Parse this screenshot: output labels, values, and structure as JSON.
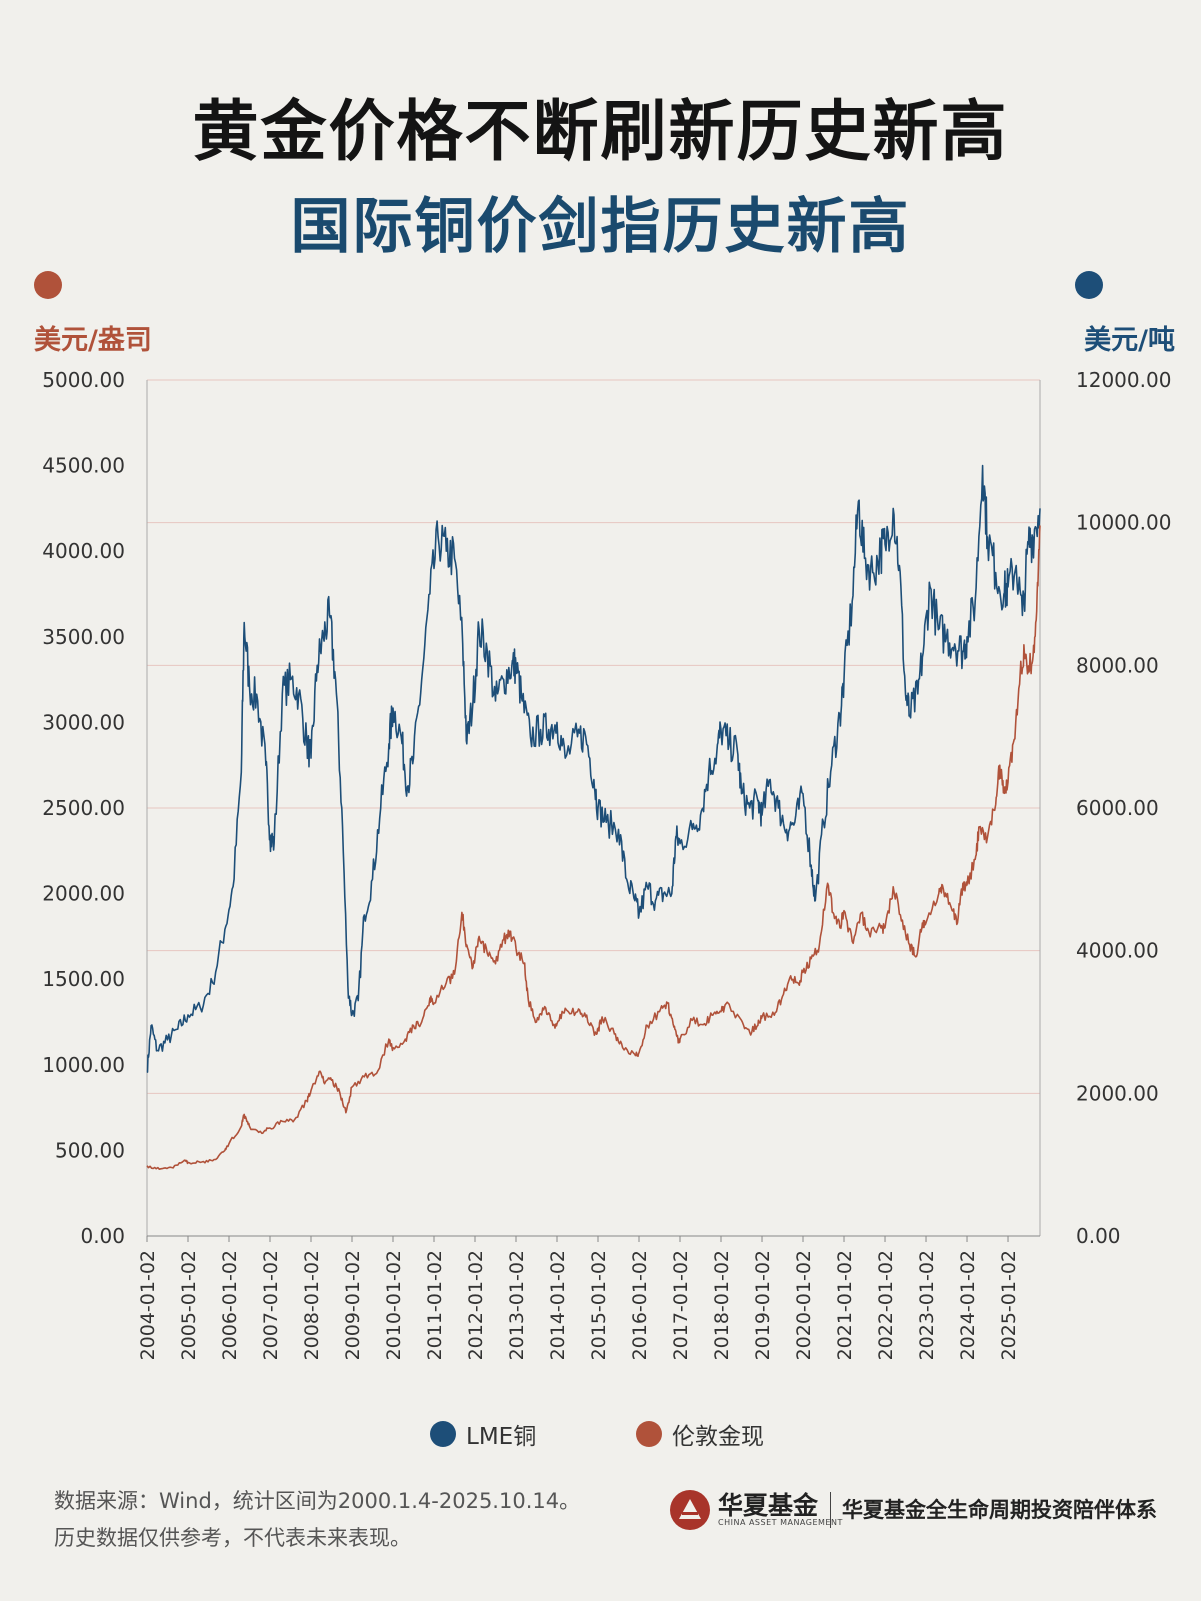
{
  "title": "黄金价格不断刷新历史新高",
  "subtitle": "国际铜价剑指历史新高",
  "colors": {
    "gold": "#b0523a",
    "copper": "#1d4e78",
    "title": "#141414",
    "subtitle": "#1a4a6e"
  },
  "left_axis_unit": "美元/盎司",
  "right_axis_unit": "美元/吨",
  "chart_data": {
    "type": "line",
    "title": "黄金价格不断刷新历史新高 / 国际铜价剑指历史新高",
    "x_tick_labels": [
      "2004-01-02",
      "2005-01-02",
      "2006-01-02",
      "2007-01-02",
      "2008-01-02",
      "2009-01-02",
      "2010-01-02",
      "2011-01-02",
      "2012-01-02",
      "2013-01-02",
      "2014-01-02",
      "2015-01-02",
      "2016-01-02",
      "2017-01-02",
      "2018-01-02",
      "2019-01-02",
      "2020-01-02",
      "2021-01-02",
      "2022-01-02",
      "2023-01-02",
      "2024-01-02",
      "2025-01-02"
    ],
    "y_left": {
      "label": "美元/盎司",
      "ylim": [
        0,
        5000
      ],
      "ticks": [
        "0.00",
        "500.00",
        "1000.00",
        "1500.00",
        "2000.00",
        "2500.00",
        "3000.00",
        "3500.00",
        "4000.00",
        "4500.00",
        "5000.00"
      ]
    },
    "y_right": {
      "label": "美元/吨",
      "ylim": [
        0,
        12000
      ],
      "ticks": [
        "0.00",
        "2000.00",
        "4000.00",
        "6000.00",
        "8000.00",
        "10000.00",
        "12000.00"
      ]
    },
    "series": [
      {
        "name": "LME铜",
        "axis": "right",
        "color": "#1d4e78",
        "points": [
          [
            2004.0,
            2300
          ],
          [
            2004.1,
            2950
          ],
          [
            2004.25,
            2600
          ],
          [
            2004.5,
            2750
          ],
          [
            2004.75,
            2900
          ],
          [
            2005.0,
            3100
          ],
          [
            2005.3,
            3200
          ],
          [
            2005.6,
            3550
          ],
          [
            2005.9,
            4300
          ],
          [
            2006.1,
            4900
          ],
          [
            2006.3,
            6500
          ],
          [
            2006.37,
            8600
          ],
          [
            2006.5,
            7700
          ],
          [
            2006.7,
            7500
          ],
          [
            2006.9,
            6600
          ],
          [
            2007.0,
            5600
          ],
          [
            2007.1,
            5500
          ],
          [
            2007.3,
            7600
          ],
          [
            2007.5,
            7800
          ],
          [
            2007.7,
            7600
          ],
          [
            2007.9,
            6900
          ],
          [
            2008.0,
            6700
          ],
          [
            2008.15,
            8000
          ],
          [
            2008.3,
            8400
          ],
          [
            2008.45,
            8700
          ],
          [
            2008.6,
            7800
          ],
          [
            2008.75,
            6000
          ],
          [
            2008.9,
            3500
          ],
          [
            2009.0,
            3100
          ],
          [
            2009.15,
            3300
          ],
          [
            2009.3,
            4500
          ],
          [
            2009.5,
            5000
          ],
          [
            2009.7,
            6000
          ],
          [
            2009.9,
            6900
          ],
          [
            2010.0,
            7400
          ],
          [
            2010.2,
            7000
          ],
          [
            2010.35,
            6300
          ],
          [
            2010.5,
            6700
          ],
          [
            2010.7,
            7800
          ],
          [
            2010.9,
            9000
          ],
          [
            2011.1,
            9800
          ],
          [
            2011.3,
            9600
          ],
          [
            2011.5,
            9500
          ],
          [
            2011.7,
            8300
          ],
          [
            2011.8,
            6900
          ],
          [
            2011.95,
            7500
          ],
          [
            2012.1,
            8500
          ],
          [
            2012.3,
            8200
          ],
          [
            2012.5,
            7500
          ],
          [
            2012.7,
            7800
          ],
          [
            2012.9,
            8000
          ],
          [
            2013.0,
            8000
          ],
          [
            2013.15,
            7500
          ],
          [
            2013.35,
            7000
          ],
          [
            2013.6,
            7100
          ],
          [
            2013.8,
            7100
          ],
          [
            2014.0,
            7200
          ],
          [
            2014.2,
            6700
          ],
          [
            2014.5,
            7000
          ],
          [
            2014.7,
            7000
          ],
          [
            2014.9,
            6400
          ],
          [
            2015.0,
            6000
          ],
          [
            2015.2,
            5800
          ],
          [
            2015.5,
            5700
          ],
          [
            2015.7,
            5000
          ],
          [
            2015.9,
            4700
          ],
          [
            2016.0,
            4500
          ],
          [
            2016.2,
            4900
          ],
          [
            2016.4,
            4700
          ],
          [
            2016.6,
            4800
          ],
          [
            2016.8,
            4800
          ],
          [
            2016.9,
            5600
          ],
          [
            2017.0,
            5500
          ],
          [
            2017.3,
            5700
          ],
          [
            2017.5,
            5900
          ],
          [
            2017.7,
            6500
          ],
          [
            2017.9,
            6800
          ],
          [
            2018.0,
            7100
          ],
          [
            2018.2,
            6900
          ],
          [
            2018.4,
            6800
          ],
          [
            2018.5,
            6200
          ],
          [
            2018.7,
            6000
          ],
          [
            2018.9,
            6100
          ],
          [
            2019.0,
            5900
          ],
          [
            2019.2,
            6400
          ],
          [
            2019.4,
            6000
          ],
          [
            2019.6,
            5700
          ],
          [
            2019.8,
            5800
          ],
          [
            2020.0,
            6200
          ],
          [
            2020.2,
            5200
          ],
          [
            2020.3,
            4700
          ],
          [
            2020.5,
            5800
          ],
          [
            2020.7,
            6600
          ],
          [
            2020.9,
            7300
          ],
          [
            2021.0,
            7800
          ],
          [
            2021.2,
            8900
          ],
          [
            2021.35,
            10300
          ],
          [
            2021.5,
            9500
          ],
          [
            2021.7,
            9300
          ],
          [
            2021.9,
            9600
          ],
          [
            2022.0,
            9700
          ],
          [
            2022.2,
            10200
          ],
          [
            2022.35,
            9400
          ],
          [
            2022.5,
            7600
          ],
          [
            2022.6,
            7300
          ],
          [
            2022.8,
            7600
          ],
          [
            2022.95,
            8300
          ],
          [
            2023.1,
            9100
          ],
          [
            2023.3,
            8500
          ],
          [
            2023.5,
            8400
          ],
          [
            2023.7,
            8300
          ],
          [
            2023.9,
            8200
          ],
          [
            2024.0,
            8400
          ],
          [
            2024.2,
            8900
          ],
          [
            2024.38,
            10800
          ],
          [
            2024.5,
            9800
          ],
          [
            2024.7,
            9300
          ],
          [
            2024.9,
            9000
          ],
          [
            2025.0,
            9100
          ],
          [
            2025.2,
            9400
          ],
          [
            2025.35,
            8700
          ],
          [
            2025.5,
            9700
          ],
          [
            2025.6,
            9800
          ],
          [
            2025.78,
            10200
          ]
        ]
      },
      {
        "name": "伦敦金现",
        "axis": "left",
        "color": "#b0523a",
        "points": [
          [
            2004.0,
            410
          ],
          [
            2004.3,
            390
          ],
          [
            2004.6,
            400
          ],
          [
            2004.9,
            440
          ],
          [
            2005.0,
            430
          ],
          [
            2005.3,
            430
          ],
          [
            2005.6,
            440
          ],
          [
            2005.9,
            500
          ],
          [
            2006.0,
            540
          ],
          [
            2006.3,
            640
          ],
          [
            2006.37,
            710
          ],
          [
            2006.5,
            640
          ],
          [
            2006.8,
            600
          ],
          [
            2007.0,
            630
          ],
          [
            2007.3,
            670
          ],
          [
            2007.6,
            680
          ],
          [
            2007.9,
            790
          ],
          [
            2008.0,
            850
          ],
          [
            2008.2,
            960
          ],
          [
            2008.35,
            900
          ],
          [
            2008.5,
            910
          ],
          [
            2008.7,
            840
          ],
          [
            2008.85,
            720
          ],
          [
            2009.0,
            870
          ],
          [
            2009.3,
            930
          ],
          [
            2009.6,
            950
          ],
          [
            2009.9,
            1150
          ],
          [
            2010.0,
            1100
          ],
          [
            2010.3,
            1150
          ],
          [
            2010.5,
            1230
          ],
          [
            2010.7,
            1250
          ],
          [
            2010.9,
            1390
          ],
          [
            2011.0,
            1360
          ],
          [
            2011.3,
            1480
          ],
          [
            2011.5,
            1530
          ],
          [
            2011.68,
            1890
          ],
          [
            2011.8,
            1700
          ],
          [
            2011.95,
            1570
          ],
          [
            2012.1,
            1750
          ],
          [
            2012.3,
            1650
          ],
          [
            2012.5,
            1590
          ],
          [
            2012.7,
            1730
          ],
          [
            2012.85,
            1780
          ],
          [
            2013.0,
            1680
          ],
          [
            2013.2,
            1590
          ],
          [
            2013.3,
            1380
          ],
          [
            2013.5,
            1250
          ],
          [
            2013.7,
            1340
          ],
          [
            2013.9,
            1230
          ],
          [
            2014.0,
            1240
          ],
          [
            2014.2,
            1330
          ],
          [
            2014.5,
            1310
          ],
          [
            2014.7,
            1280
          ],
          [
            2014.9,
            1190
          ],
          [
            2015.0,
            1200
          ],
          [
            2015.1,
            1280
          ],
          [
            2015.4,
            1180
          ],
          [
            2015.6,
            1100
          ],
          [
            2015.9,
            1060
          ],
          [
            2016.0,
            1070
          ],
          [
            2016.2,
            1230
          ],
          [
            2016.5,
            1310
          ],
          [
            2016.7,
            1360
          ],
          [
            2016.85,
            1220
          ],
          [
            2016.95,
            1150
          ],
          [
            2017.0,
            1150
          ],
          [
            2017.3,
            1260
          ],
          [
            2017.6,
            1240
          ],
          [
            2017.8,
            1290
          ],
          [
            2018.0,
            1310
          ],
          [
            2018.1,
            1350
          ],
          [
            2018.5,
            1260
          ],
          [
            2018.7,
            1190
          ],
          [
            2018.9,
            1230
          ],
          [
            2019.0,
            1280
          ],
          [
            2019.3,
            1290
          ],
          [
            2019.5,
            1400
          ],
          [
            2019.7,
            1520
          ],
          [
            2019.9,
            1470
          ],
          [
            2020.0,
            1540
          ],
          [
            2020.2,
            1620
          ],
          [
            2020.4,
            1700
          ],
          [
            2020.6,
            2060
          ],
          [
            2020.75,
            1880
          ],
          [
            2020.9,
            1800
          ],
          [
            2021.0,
            1900
          ],
          [
            2021.2,
            1720
          ],
          [
            2021.4,
            1880
          ],
          [
            2021.6,
            1780
          ],
          [
            2021.9,
            1800
          ],
          [
            2022.0,
            1800
          ],
          [
            2022.2,
            2040
          ],
          [
            2022.4,
            1840
          ],
          [
            2022.6,
            1700
          ],
          [
            2022.75,
            1630
          ],
          [
            2022.9,
            1800
          ],
          [
            2023.0,
            1830
          ],
          [
            2023.3,
            1990
          ],
          [
            2023.4,
            2050
          ],
          [
            2023.6,
            1930
          ],
          [
            2023.75,
            1820
          ],
          [
            2023.9,
            2060
          ],
          [
            2024.0,
            2050
          ],
          [
            2024.2,
            2200
          ],
          [
            2024.3,
            2390
          ],
          [
            2024.5,
            2330
          ],
          [
            2024.7,
            2520
          ],
          [
            2024.8,
            2750
          ],
          [
            2024.9,
            2620
          ],
          [
            2025.0,
            2650
          ],
          [
            2025.15,
            2900
          ],
          [
            2025.3,
            3300
          ],
          [
            2025.4,
            3400
          ],
          [
            2025.5,
            3330
          ],
          [
            2025.6,
            3360
          ],
          [
            2025.7,
            3650
          ],
          [
            2025.78,
            4150
          ]
        ]
      }
    ]
  },
  "legend": [
    {
      "label": "LME铜",
      "color": "#1d4e78"
    },
    {
      "label": "伦敦金现",
      "color": "#b0523a"
    }
  ],
  "footer": {
    "source": "数据来源：Wind，统计区间为2000.1.4-2025.10.14。",
    "disclaimer": "历史数据仅供参考，不代表未来表现。",
    "brand_name": "华夏基金",
    "brand_en": "CHINA ASSET MANAGEMENT",
    "slogan": "华夏基金全生命周期投资陪伴体系"
  }
}
